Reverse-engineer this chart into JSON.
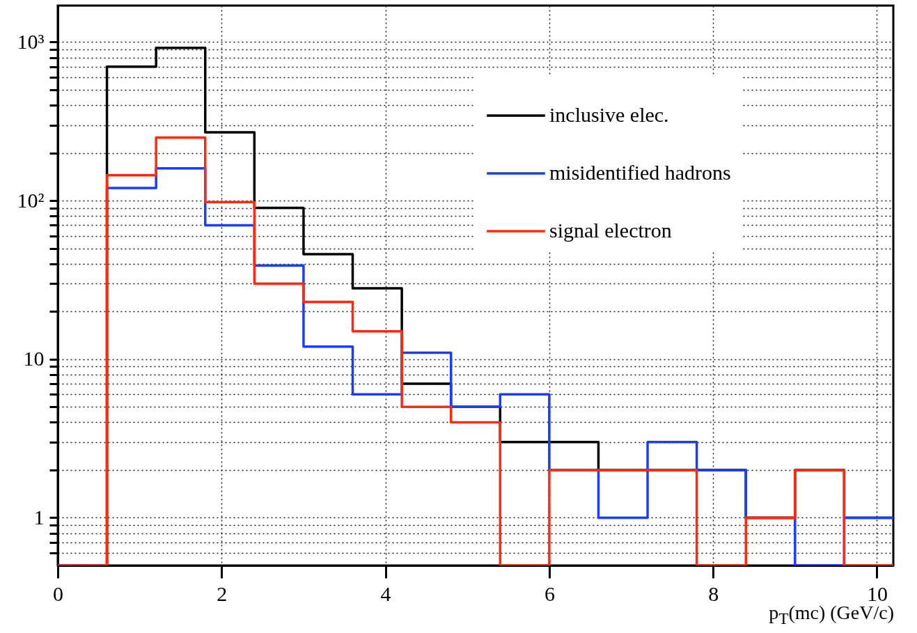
{
  "chart_data": {
    "type": "histogram",
    "xlabel": "p$_{T}$(mc) (GeV/c)",
    "bins": [
      0,
      0.6,
      1.2,
      1.8,
      2.4,
      3.0,
      3.6,
      4.2,
      4.8,
      5.4,
      6.0,
      6.6,
      7.2,
      7.8,
      8.4,
      9.0,
      9.6,
      10.2
    ],
    "series": [
      {
        "name": "inclusive elec.",
        "color": "#000000",
        "values": [
          null,
          700,
          920,
          270,
          90,
          46,
          28,
          7,
          5,
          3,
          3,
          2,
          2,
          2,
          1,
          2,
          1
        ]
      },
      {
        "name": "misidentified hadrons",
        "color": "#1a3cff",
        "values": [
          null,
          120,
          160,
          70,
          39,
          12,
          6,
          11,
          5,
          6,
          2,
          1,
          3,
          2,
          1,
          null,
          1
        ]
      },
      {
        "name": "signal electron",
        "color": "#ff2a10",
        "values": [
          null,
          145,
          250,
          98,
          30,
          23,
          15,
          5,
          4,
          null,
          2,
          2,
          2,
          null,
          1,
          2,
          null
        ]
      }
    ],
    "xlim": [
      0,
      10.2
    ],
    "xticks": [
      0,
      2,
      4,
      6,
      8,
      10
    ],
    "ylim": [
      0.5,
      1700
    ],
    "yticks": [
      {
        "value": 0.6,
        "label": null
      },
      {
        "value": 0.7,
        "label": null
      },
      {
        "value": 0.8,
        "label": null
      },
      {
        "value": 0.9,
        "label": null
      },
      1,
      {
        "value": 2,
        "label": null
      },
      {
        "value": 3,
        "label": null
      },
      {
        "value": 4,
        "label": null
      },
      {
        "value": 5,
        "label": null
      },
      {
        "value": 6,
        "label": null
      },
      {
        "value": 7,
        "label": null
      },
      {
        "value": 8,
        "label": null
      },
      {
        "value": 9,
        "label": null
      },
      10,
      {
        "value": 20,
        "label": null
      },
      {
        "value": 30,
        "label": null
      },
      {
        "value": 40,
        "label": null
      },
      {
        "value": 50,
        "label": null
      },
      {
        "value": 60,
        "label": null
      },
      {
        "value": 70,
        "label": null
      },
      {
        "value": 80,
        "label": null
      },
      {
        "value": 90,
        "label": null
      },
      {
        "value": 100,
        "label": "10²"
      },
      {
        "value": 200,
        "label": null
      },
      {
        "value": 300,
        "label": null
      },
      {
        "value": 400,
        "label": null
      },
      {
        "value": 500,
        "label": null
      },
      {
        "value": 600,
        "label": null
      },
      {
        "value": 700,
        "label": null
      },
      {
        "value": 800,
        "label": null
      },
      {
        "value": 900,
        "label": null
      },
      {
        "value": 1000,
        "label": "10³"
      }
    ],
    "log": true,
    "grid": true,
    "legend": "top right"
  }
}
